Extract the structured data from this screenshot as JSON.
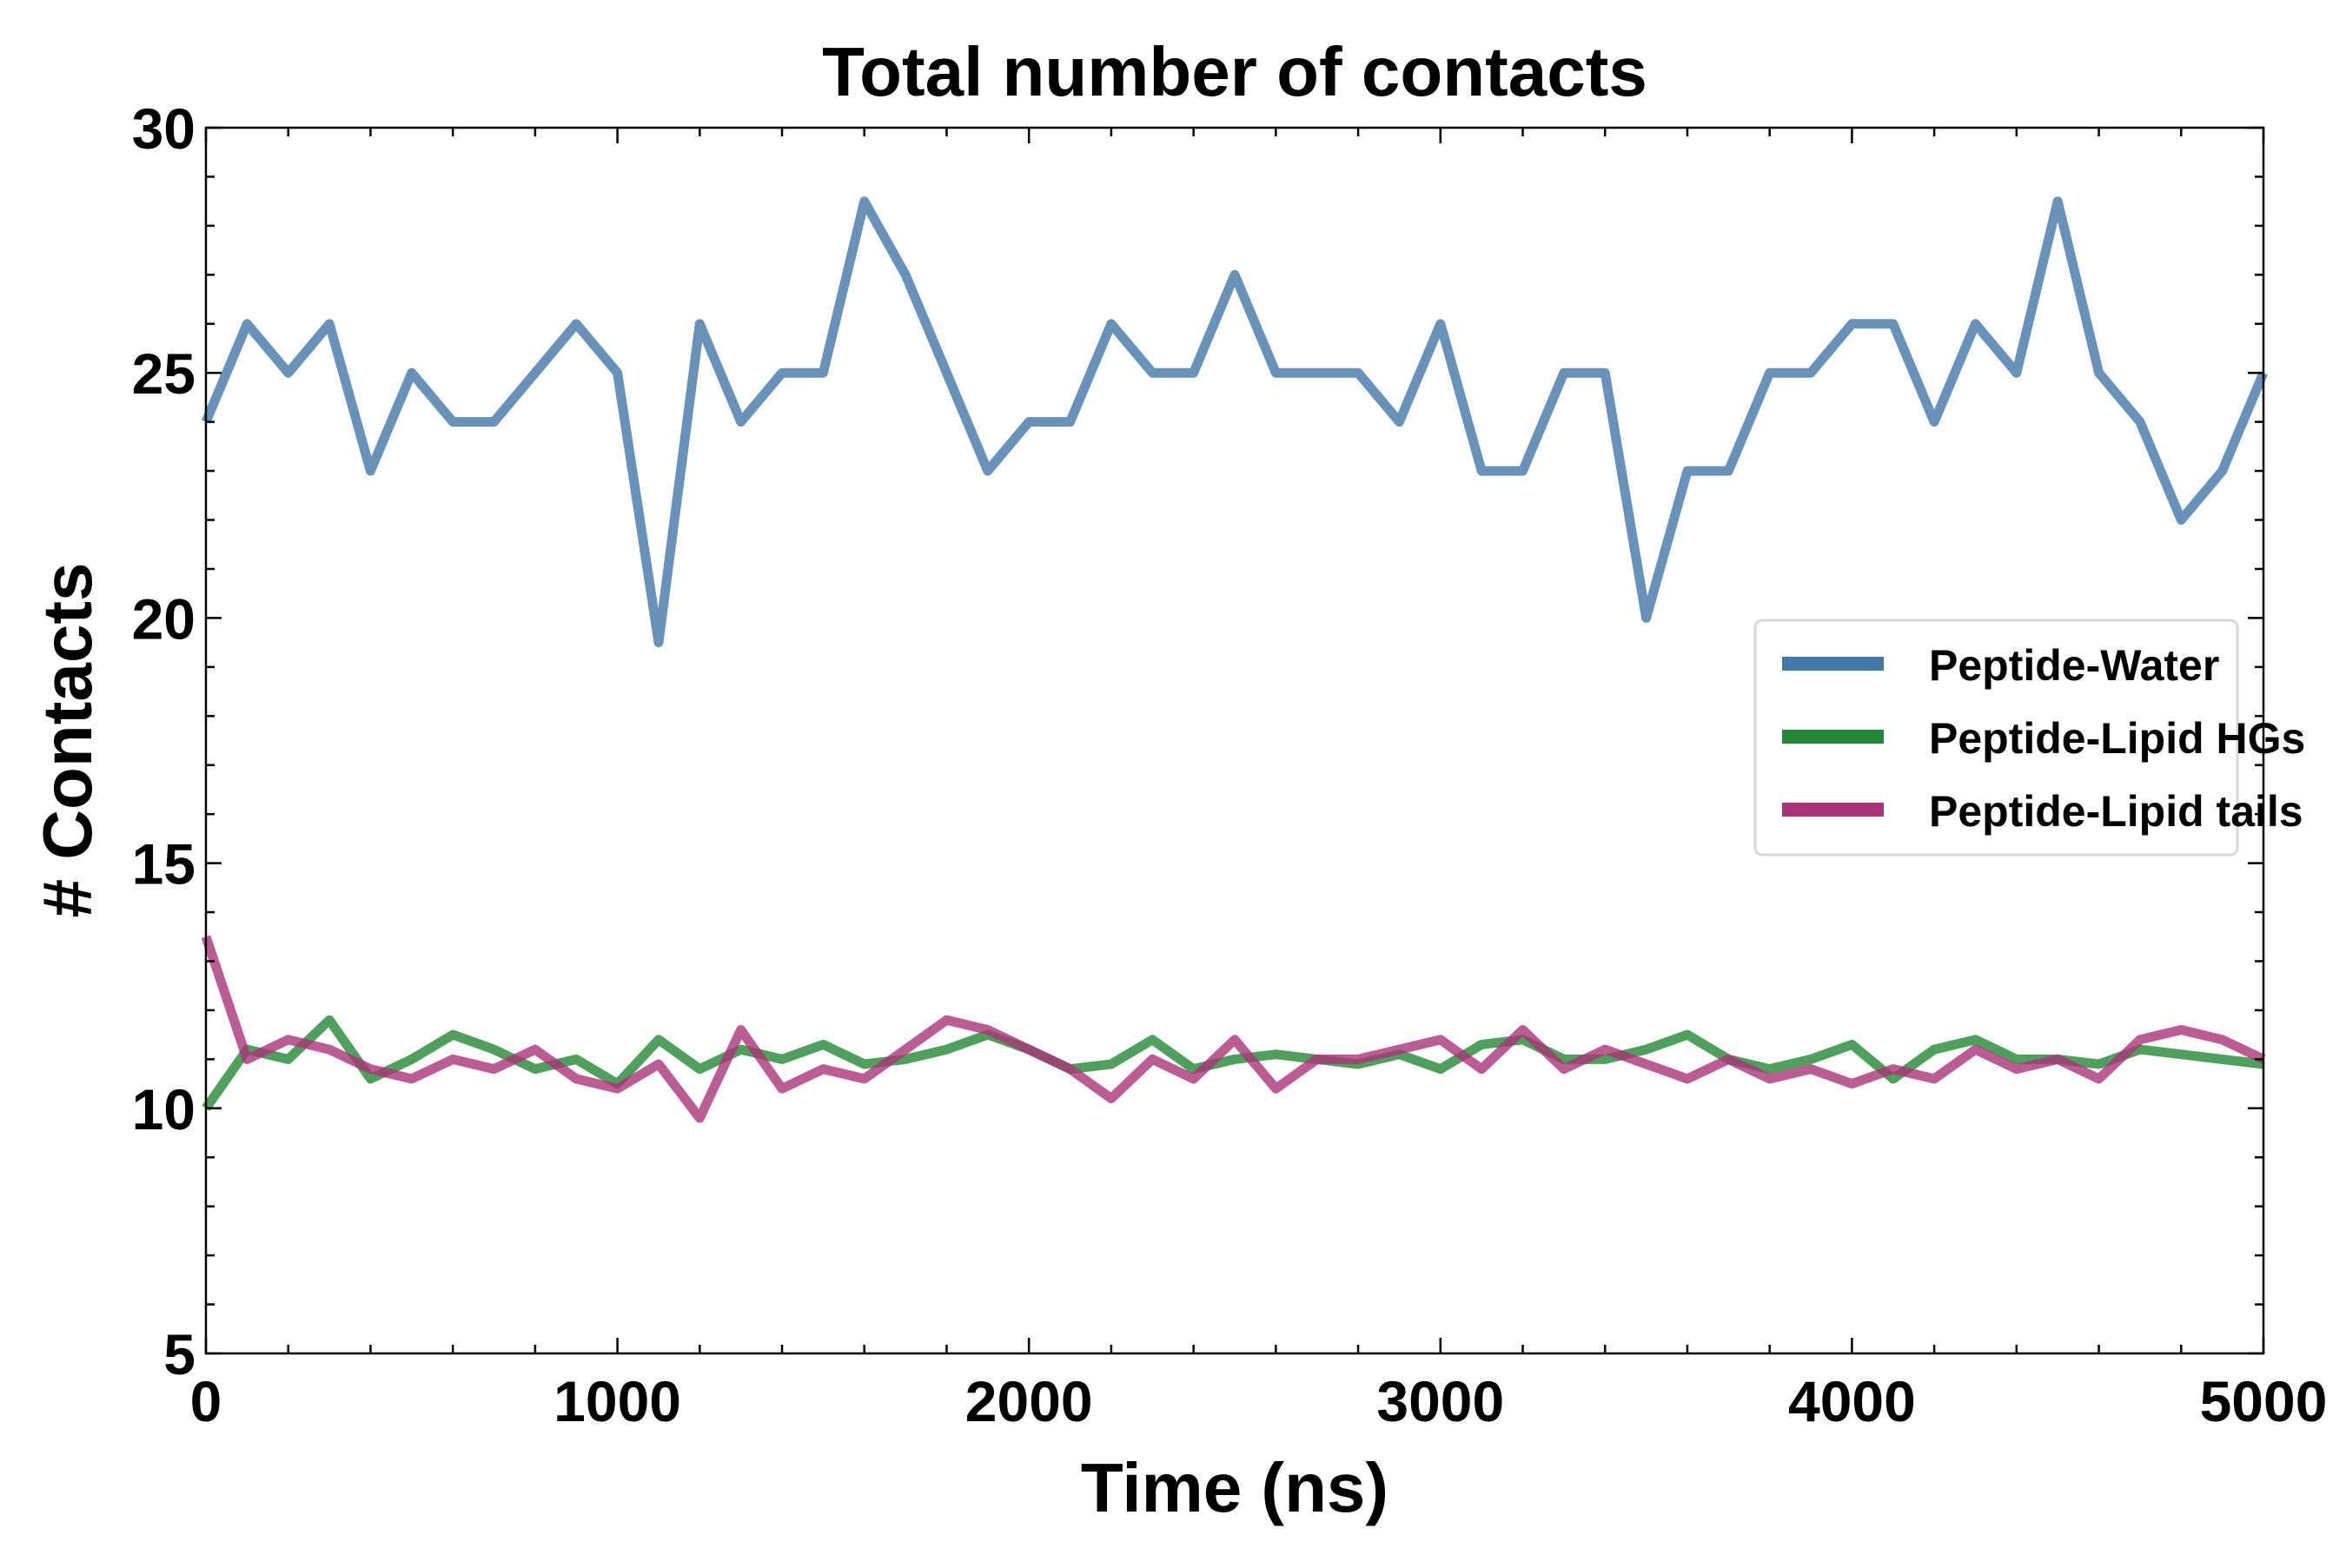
{
  "chart_data": {
    "type": "line",
    "title": "Total number of contacts",
    "xlabel": "Time (ns)",
    "ylabel": "# Contacts",
    "xlim": [
      0,
      5000
    ],
    "ylim": [
      5,
      30
    ],
    "xticks": [
      "0",
      "1000",
      "2000",
      "3000",
      "4000",
      "5000"
    ],
    "yticks": [
      "5",
      "10",
      "15",
      "20",
      "25",
      "30"
    ],
    "grid": false,
    "legend_placement": "center-right",
    "x": [
      0,
      100,
      200,
      300,
      400,
      500,
      600,
      700,
      800,
      900,
      1000,
      1100,
      1200,
      1300,
      1400,
      1500,
      1600,
      1700,
      1800,
      1900,
      2000,
      2100,
      2200,
      2300,
      2400,
      2500,
      2600,
      2700,
      2800,
      2900,
      3000,
      3100,
      3200,
      3300,
      3400,
      3500,
      3600,
      3700,
      3800,
      3900,
      4000,
      4100,
      4200,
      4300,
      4400,
      4500,
      4600,
      4700,
      4800,
      4900,
      5000
    ],
    "series": [
      {
        "name": "Peptide-Water",
        "color": "#4477aa",
        "values": [
          24,
          26,
          25,
          26,
          23,
          25,
          24,
          24,
          25,
          26,
          25,
          19.5,
          26,
          24,
          25,
          25,
          28.5,
          27,
          25,
          23,
          24,
          24,
          26,
          25,
          25,
          27,
          25,
          25,
          25,
          24,
          26,
          23,
          23,
          25,
          25,
          20,
          23,
          23,
          25,
          25,
          26,
          26,
          24,
          26,
          25,
          28.5,
          25,
          24,
          22,
          23,
          25
        ]
      },
      {
        "name": "Peptide-Lipid HGs",
        "color": "#228833",
        "values": [
          10,
          11.2,
          11,
          11.8,
          10.6,
          11,
          11.5,
          11.2,
          10.8,
          11,
          10.5,
          11.4,
          10.8,
          11.2,
          11,
          11.3,
          10.9,
          11,
          11.2,
          11.5,
          11.2,
          10.8,
          10.9,
          11.4,
          10.8,
          11,
          11.1,
          11,
          10.9,
          11.1,
          10.8,
          11.3,
          11.4,
          11,
          11,
          11.2,
          11.5,
          11,
          10.8,
          11,
          11.3,
          10.6,
          11.2,
          11.4,
          11,
          11,
          10.9,
          11.2,
          11.1,
          11,
          10.9
        ]
      },
      {
        "name": "Peptide-Lipid tails",
        "color": "#aa3377",
        "values": [
          13.5,
          11,
          11.4,
          11.2,
          10.8,
          10.6,
          11,
          10.8,
          11.2,
          10.6,
          10.4,
          10.9,
          9.8,
          11.6,
          10.4,
          10.8,
          10.6,
          11.2,
          11.8,
          11.6,
          11.2,
          10.8,
          10.2,
          11,
          10.6,
          11.4,
          10.4,
          11,
          11,
          11.2,
          11.4,
          10.8,
          11.6,
          10.8,
          11.2,
          10.9,
          10.6,
          11,
          10.6,
          10.8,
          10.5,
          10.8,
          10.6,
          11.2,
          10.8,
          11,
          10.6,
          11.4,
          11.6,
          11.4,
          11
        ]
      }
    ]
  }
}
